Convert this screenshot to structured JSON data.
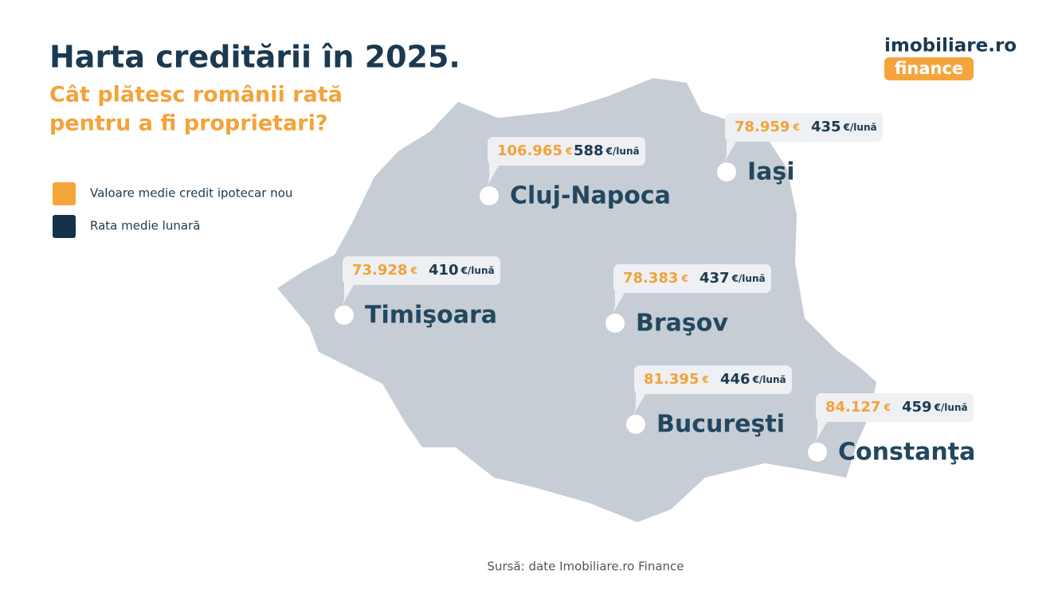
{
  "header": {
    "title": "Harta creditării în 2025.",
    "subtitle_line1": "Cât plătesc românii rată",
    "subtitle_line2": "pentru a fi proprietari?"
  },
  "logo": {
    "brand": "imobiliare.ro",
    "tag": "finance"
  },
  "legend": {
    "items": [
      "Valoare medie credit ipotecar nou",
      "Rata medie lunară"
    ]
  },
  "units": {
    "value": "€",
    "rate": "€/lună"
  },
  "cities": [
    {
      "name": "Cluj-Napoca",
      "value": "106.965",
      "rate": "588"
    },
    {
      "name": "Iaşi",
      "value": "78.959",
      "rate": "435"
    },
    {
      "name": "Timişoara",
      "value": "73.928",
      "rate": "410"
    },
    {
      "name": "Braşov",
      "value": "78.383",
      "rate": "437"
    },
    {
      "name": "Bucureşti",
      "value": "81.395",
      "rate": "446"
    },
    {
      "name": "Constanţa",
      "value": "84.127",
      "rate": "459"
    }
  ],
  "source": "Sursă: date Imobiliare.ro Finance"
}
